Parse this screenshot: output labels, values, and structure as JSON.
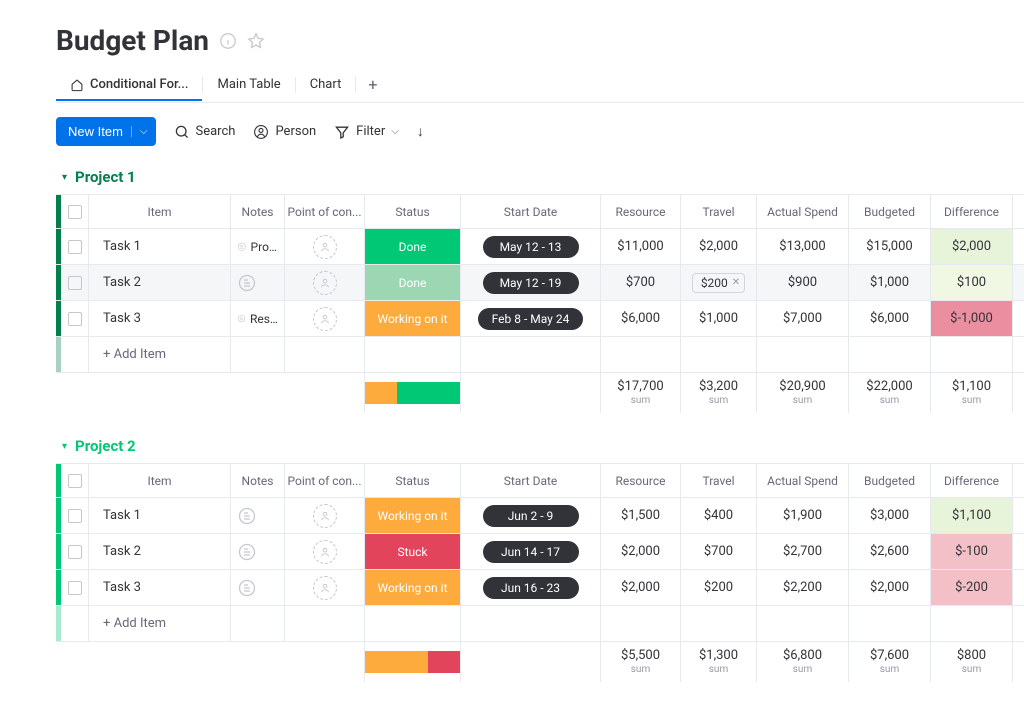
{
  "title": "Budget Plan",
  "tabs": {
    "items": [
      {
        "label": "Conditional For...",
        "active": true,
        "icon": "home"
      },
      {
        "label": "Main Table",
        "active": false
      },
      {
        "label": "Chart",
        "active": false
      }
    ]
  },
  "toolbar": {
    "new_item": "New Item",
    "search": "Search",
    "person": "Person",
    "filter": "Filter"
  },
  "columns": [
    "Item",
    "Notes",
    "Point of con...",
    "Status",
    "Start Date",
    "Resource",
    "Travel",
    "Actual Spend",
    "Budgeted",
    "Difference"
  ],
  "status_colors": {
    "Done": "#00c875",
    "Done_alt": "#9cd6b2",
    "Working on it": "#fdab3d",
    "Stuck": "#e2445c"
  },
  "diff_colors": {
    "positive": "#e8f4d9",
    "positive_light": "#f0f7e3",
    "negative": "#f4c0c7",
    "negative_strong": "#eb8fa0"
  },
  "add_item_label": "+ Add Item",
  "sum_label": "sum",
  "groups": [
    {
      "name": "Project 1",
      "color": "#037f4c",
      "rows": [
        {
          "item": "Task 1",
          "notes": "Project D...",
          "status": "Done",
          "status_color": "#00c875",
          "date": "May 12 - 13",
          "resource": "$11,000",
          "travel": "$2,000",
          "spend": "$13,000",
          "budget": "$15,000",
          "diff": "$2,000",
          "diff_bg": "#e8f4d9"
        },
        {
          "item": "Task 2",
          "notes": "",
          "status": "Done",
          "status_color": "#9cd6b2",
          "date": "May 12 - 19",
          "resource": "$700",
          "travel": "$200",
          "travel_chip": true,
          "spend": "$900",
          "budget": "$1,000",
          "diff": "$100",
          "diff_bg": "#f0f7e3",
          "hover": true
        },
        {
          "item": "Task 3",
          "notes": "Resource ...",
          "status": "Working on it",
          "status_color": "#fdab3d",
          "date": "Feb 8 - May 24",
          "resource": "$6,000",
          "travel": "$1,000",
          "spend": "$7,000",
          "budget": "$6,000",
          "diff": "$-1,000",
          "diff_bg": "#eb8fa0"
        }
      ],
      "status_summary": [
        {
          "color": "#fdab3d",
          "pct": 33.3
        },
        {
          "color": "#00c875",
          "pct": 66.7
        }
      ],
      "sums": {
        "resource": "$17,700",
        "travel": "$3,200",
        "spend": "$20,900",
        "budget": "$22,000",
        "diff": "$1,100"
      }
    },
    {
      "name": "Project 2",
      "color": "#00c875",
      "rows": [
        {
          "item": "Task 1",
          "notes": "",
          "status": "Working on it",
          "status_color": "#fdab3d",
          "date": "Jun 2 - 9",
          "resource": "$1,500",
          "travel": "$400",
          "spend": "$1,900",
          "budget": "$3,000",
          "diff": "$1,100",
          "diff_bg": "#e8f4d9"
        },
        {
          "item": "Task 2",
          "notes": "",
          "status": "Stuck",
          "status_color": "#e2445c",
          "date": "Jun 14 - 17",
          "resource": "$2,000",
          "travel": "$700",
          "spend": "$2,700",
          "budget": "$2,600",
          "diff": "$-100",
          "diff_bg": "#f4c0c7"
        },
        {
          "item": "Task 3",
          "notes": "",
          "status": "Working on it",
          "status_color": "#fdab3d",
          "date": "Jun 16 - 23",
          "resource": "$2,000",
          "travel": "$200",
          "spend": "$2,200",
          "budget": "$2,000",
          "diff": "$-200",
          "diff_bg": "#f4c0c7"
        }
      ],
      "status_summary": [
        {
          "color": "#fdab3d",
          "pct": 66.7
        },
        {
          "color": "#e2445c",
          "pct": 33.3
        }
      ],
      "sums": {
        "resource": "$5,500",
        "travel": "$1,300",
        "spend": "$6,800",
        "budget": "$7,600",
        "diff": "$800"
      }
    }
  ]
}
